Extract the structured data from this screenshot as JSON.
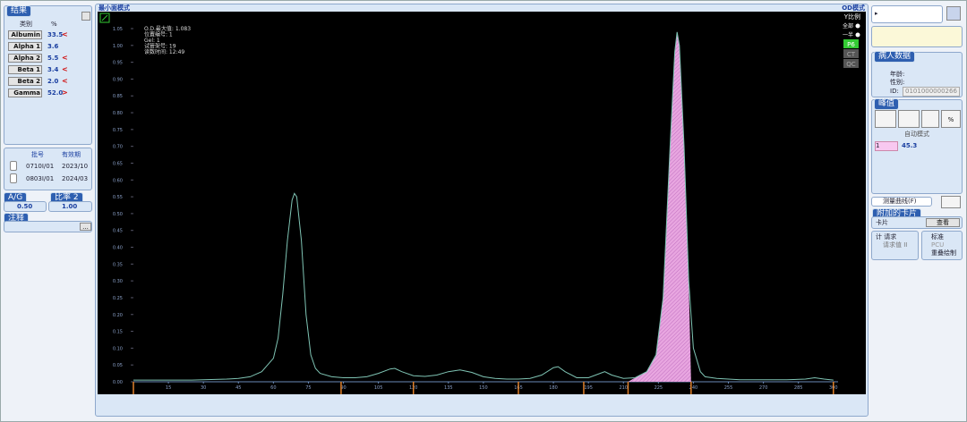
{
  "left_panel": {
    "results_title": "结果",
    "col_class": "类别",
    "col_pct": "%",
    "rows": [
      {
        "name": "Albumin",
        "value": "33.5",
        "flag": "<"
      },
      {
        "name": "Alpha 1",
        "value": "3.6"
      },
      {
        "name": "Alpha 2",
        "value": "5.5",
        "flag": "<"
      },
      {
        "name": "Beta 1",
        "value": "3.4",
        "flag": "<"
      },
      {
        "name": "Beta 2",
        "value": "2.0",
        "flag": "<"
      },
      {
        "name": "Gamma",
        "value": "52.0",
        "flag": ">"
      }
    ],
    "lot_header": [
      "批号",
      "有效期"
    ],
    "lots": [
      [
        "0710I/01",
        "2023/10"
      ],
      [
        "0803I/01",
        "2024/03"
      ]
    ],
    "ag_label": "A/G",
    "ag_value": "0.50",
    "ratio_label": "比率 2",
    "ratio_value": "1.00",
    "comment_title": "注释",
    "comment_button": "..."
  },
  "chart_panel": {
    "title": "最小面模式",
    "mode": "OD模式",
    "info": [
      "O.D.最大值: 1.083",
      "位置编号: 1",
      "Gel: 1",
      "试管架号: 19",
      "读数时间: 12:49"
    ],
    "scale_title": "Y比例",
    "scale_all": "全部",
    "scale_half": "一半",
    "tags": [
      "P6",
      "CT",
      "QC"
    ],
    "chart_data": {
      "type": "line",
      "color": "#7fc4b4",
      "x": [
        0,
        5,
        10,
        15,
        20,
        25,
        30,
        35,
        40,
        45,
        50,
        55,
        60,
        62,
        64,
        66,
        68,
        69,
        70,
        72,
        74,
        76,
        78,
        80,
        85,
        90,
        95,
        100,
        105,
        110,
        112,
        115,
        120,
        125,
        130,
        135,
        140,
        145,
        150,
        155,
        160,
        165,
        170,
        175,
        180,
        182,
        185,
        190,
        195,
        200,
        202,
        205,
        210,
        215,
        220,
        224,
        227,
        230,
        232,
        233,
        234,
        236,
        238,
        240,
        243,
        245,
        250,
        255,
        260,
        270,
        280,
        288,
        292,
        296,
        300
      ],
      "values": [
        0.005,
        0.005,
        0.005,
        0.005,
        0.005,
        0.005,
        0.006,
        0.007,
        0.008,
        0.01,
        0.015,
        0.03,
        0.07,
        0.13,
        0.26,
        0.42,
        0.54,
        0.56,
        0.55,
        0.42,
        0.2,
        0.08,
        0.04,
        0.025,
        0.015,
        0.012,
        0.012,
        0.015,
        0.025,
        0.038,
        0.04,
        0.03,
        0.018,
        0.016,
        0.02,
        0.03,
        0.035,
        0.028,
        0.015,
        0.01,
        0.008,
        0.008,
        0.01,
        0.02,
        0.042,
        0.045,
        0.03,
        0.012,
        0.012,
        0.025,
        0.03,
        0.02,
        0.01,
        0.012,
        0.03,
        0.08,
        0.25,
        0.7,
        0.98,
        1.04,
        1.0,
        0.7,
        0.3,
        0.1,
        0.03,
        0.015,
        0.01,
        0.008,
        0.006,
        0.006,
        0.006,
        0.008,
        0.012,
        0.008,
        0.005
      ],
      "xlim": [
        0,
        302
      ],
      "ylim": [
        0,
        1.05
      ],
      "xticks": [
        15,
        30,
        45,
        60,
        75,
        90,
        105,
        120,
        135,
        150,
        165,
        180,
        195,
        210,
        225,
        240,
        255,
        270,
        285,
        300
      ],
      "yticks": [
        {
          "value": 0,
          "label": "0.00"
        },
        {
          "value": 0.05,
          "label": "0.05"
        },
        {
          "value": 0.1,
          "label": "0.10"
        },
        {
          "value": 0.15,
          "label": "0.15"
        },
        {
          "value": 0.2,
          "label": "0.20"
        },
        {
          "value": 0.25,
          "label": "0.25"
        },
        {
          "value": 0.3,
          "label": "0.30"
        },
        {
          "value": 0.35,
          "label": "0.35"
        },
        {
          "value": 0.4,
          "label": "0.40"
        },
        {
          "value": 0.45,
          "label": "0.45"
        },
        {
          "value": 0.5,
          "label": "0.50"
        },
        {
          "value": 0.55,
          "label": "0.55"
        },
        {
          "value": 0.6,
          "label": "0.60"
        },
        {
          "value": 0.65,
          "label": "0.65"
        },
        {
          "value": 0.7,
          "label": "0.70"
        },
        {
          "value": 0.75,
          "label": "0.75"
        },
        {
          "value": 0.8,
          "label": "0.80"
        },
        {
          "value": 0.85,
          "label": "0.85"
        },
        {
          "value": 0.9,
          "label": "0.90"
        },
        {
          "value": 0.95,
          "label": "0.95"
        },
        {
          "value": 1,
          "label": "1.00"
        },
        {
          "value": 1.05,
          "label": "1.05"
        }
      ],
      "fraction_boundaries": [
        0,
        89,
        120,
        165,
        193,
        212,
        239,
        300
      ]
    }
  },
  "right_panel": {
    "patient_title": "病人数据",
    "age_label": "年龄:",
    "sex_label": "性别:",
    "id_label": "ID:",
    "id_value": "0101000000266",
    "peak_title": "峰值",
    "auto_mode": "自动模式",
    "peak_index": "1",
    "peak_value": "45.3",
    "percent_button": "%",
    "measure_curve": "测量曲线(F)",
    "cards_title": "附加的卡片",
    "card_label": "卡片",
    "view_button": "查看",
    "request_label": "计 请求",
    "request_value": "请求值 II",
    "standard": "标准",
    "pcu": "PCU",
    "overlay": "重叠绘制"
  }
}
